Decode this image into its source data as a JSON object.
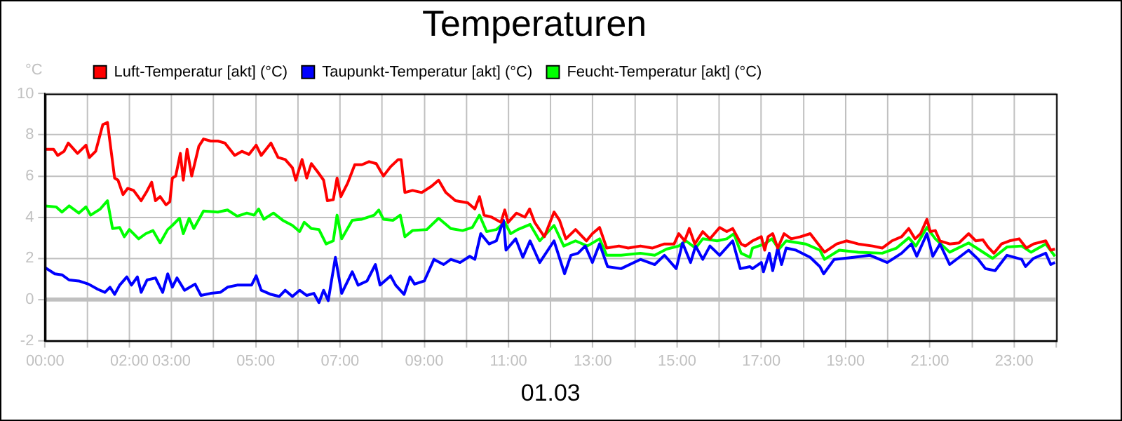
{
  "chart_data": {
    "type": "line",
    "title": "Temperaturen",
    "xlabel": "01.03",
    "ylabel": "°C",
    "legend": "top left",
    "grid": true,
    "marker": "none",
    "line_style": "solid",
    "xlim": [
      0,
      24
    ],
    "xticks": [
      {
        "value": 0,
        "label": "00:00"
      },
      {
        "value": 1,
        "label": null
      },
      {
        "value": 2,
        "label": "02:00"
      },
      {
        "value": 3,
        "label": "03:00"
      },
      {
        "value": 4,
        "label": null
      },
      {
        "value": 5,
        "label": "05:00"
      },
      {
        "value": 6,
        "label": null
      },
      {
        "value": 7,
        "label": "07:00"
      },
      {
        "value": 8,
        "label": null
      },
      {
        "value": 9,
        "label": "09:00"
      },
      {
        "value": 10,
        "label": null
      },
      {
        "value": 11,
        "label": "11:00"
      },
      {
        "value": 12,
        "label": null
      },
      {
        "value": 13,
        "label": "13:00"
      },
      {
        "value": 14,
        "label": null
      },
      {
        "value": 15,
        "label": "15:00"
      },
      {
        "value": 16,
        "label": null
      },
      {
        "value": 17,
        "label": "17:00"
      },
      {
        "value": 18,
        "label": null
      },
      {
        "value": 19,
        "label": "19:00"
      },
      {
        "value": 20,
        "label": null
      },
      {
        "value": 21,
        "label": "21:00"
      },
      {
        "value": 22,
        "label": null
      },
      {
        "value": 23,
        "label": "23:00"
      },
      {
        "value": 24,
        "label": null
      }
    ],
    "ylim": [
      -2,
      10
    ],
    "yticks": [
      -2,
      0,
      2,
      4,
      6,
      8,
      10
    ],
    "ref_lines": [
      {
        "axis": "y",
        "value": 0,
        "color": "#c0c0c0"
      }
    ],
    "series": [
      {
        "name": "Luft-Temperatur [akt] (°C)",
        "color": "#ff0000",
        "x": [
          0,
          0.2,
          0.3,
          0.45,
          0.55,
          0.77,
          0.97,
          1.05,
          1.2,
          1.37,
          1.48,
          1.6,
          1.65,
          1.73,
          1.85,
          1.96,
          2.1,
          2.28,
          2.4,
          2.53,
          2.62,
          2.73,
          2.87,
          2.96,
          3.02,
          3.1,
          3.21,
          3.28,
          3.37,
          3.48,
          3.65,
          3.76,
          3.93,
          4.1,
          4.27,
          4.5,
          4.67,
          4.84,
          5.01,
          5.13,
          5.36,
          5.53,
          5.7,
          5.87,
          5.95,
          6.1,
          6.21,
          6.32,
          6.47,
          6.61,
          6.7,
          6.84,
          6.93,
          7.02,
          7.18,
          7.35,
          7.52,
          7.69,
          7.86,
          8.03,
          8.2,
          8.38,
          8.45,
          8.54,
          8.72,
          8.94,
          9.17,
          9.34,
          9.51,
          9.74,
          10.03,
          10.2,
          10.31,
          10.42,
          10.6,
          10.82,
          10.91,
          10.99,
          11.19,
          11.39,
          11.5,
          11.62,
          11.85,
          12.08,
          12.21,
          12.36,
          12.59,
          12.85,
          12.99,
          13.16,
          13.33,
          13.62,
          13.84,
          14.13,
          14.41,
          14.7,
          14.93,
          15.04,
          15.18,
          15.29,
          15.42,
          15.61,
          15.78,
          16.01,
          16.18,
          16.32,
          16.52,
          16.62,
          16.79,
          17.0,
          17.08,
          17.16,
          17.27,
          17.39,
          17.54,
          17.71,
          17.93,
          18.16,
          18.33,
          18.5,
          18.79,
          19.02,
          19.3,
          19.64,
          19.87,
          20.1,
          20.33,
          20.5,
          20.65,
          20.78,
          20.93,
          21.01,
          21.13,
          21.24,
          21.47,
          21.69,
          21.92,
          22.09,
          22.26,
          22.38,
          22.52,
          22.7,
          22.89,
          23.12,
          23.29,
          23.46,
          23.75,
          23.87,
          23.97
        ],
        "values": [
          7.3,
          7.3,
          7.0,
          7.2,
          7.6,
          7.1,
          7.5,
          6.9,
          7.2,
          8.5,
          8.6,
          6.7,
          5.9,
          5.8,
          5.1,
          5.4,
          5.3,
          4.8,
          5.2,
          5.7,
          4.8,
          5.0,
          4.6,
          4.75,
          5.9,
          6.0,
          7.1,
          5.8,
          7.3,
          6.0,
          7.45,
          7.8,
          7.7,
          7.7,
          7.6,
          7.0,
          7.2,
          7.05,
          7.5,
          7.0,
          7.6,
          6.9,
          6.8,
          6.4,
          5.8,
          6.8,
          5.9,
          6.6,
          6.2,
          5.8,
          4.8,
          4.85,
          5.9,
          5.0,
          5.65,
          6.55,
          6.55,
          6.7,
          6.6,
          6.0,
          6.45,
          6.8,
          6.8,
          5.2,
          5.3,
          5.2,
          5.5,
          5.8,
          5.2,
          4.8,
          4.7,
          4.4,
          5.0,
          4.1,
          4.0,
          3.75,
          4.35,
          3.75,
          4.2,
          4.0,
          4.4,
          3.75,
          3.05,
          4.25,
          3.85,
          2.95,
          3.4,
          2.85,
          3.2,
          3.5,
          2.5,
          2.6,
          2.5,
          2.6,
          2.5,
          2.7,
          2.7,
          3.2,
          2.85,
          3.45,
          2.7,
          3.3,
          2.95,
          3.5,
          3.3,
          3.45,
          2.7,
          2.6,
          2.85,
          3.05,
          2.4,
          3.05,
          3.2,
          2.5,
          3.2,
          2.95,
          3.05,
          3.2,
          2.75,
          2.3,
          2.7,
          2.85,
          2.7,
          2.6,
          2.5,
          2.85,
          3.05,
          3.45,
          2.95,
          3.2,
          3.9,
          3.3,
          3.35,
          2.85,
          2.7,
          2.75,
          3.2,
          2.85,
          2.9,
          2.55,
          2.25,
          2.7,
          2.85,
          2.95,
          2.5,
          2.7,
          2.85,
          2.4,
          2.45
        ]
      },
      {
        "name": "Taupunkt-Temperatur [akt] (°C)",
        "color": "#0000ff",
        "x": [
          0,
          0.23,
          0.4,
          0.57,
          0.8,
          1.03,
          1.25,
          1.42,
          1.54,
          1.65,
          1.77,
          1.94,
          2.05,
          2.19,
          2.28,
          2.42,
          2.62,
          2.79,
          2.91,
          3.02,
          3.13,
          3.31,
          3.56,
          3.7,
          3.93,
          4.16,
          4.33,
          4.56,
          4.9,
          5.01,
          5.13,
          5.36,
          5.56,
          5.7,
          5.87,
          6.04,
          6.21,
          6.38,
          6.5,
          6.61,
          6.72,
          6.89,
          7.04,
          7.29,
          7.43,
          7.64,
          7.84,
          7.95,
          8.2,
          8.32,
          8.52,
          8.66,
          8.77,
          9.0,
          9.23,
          9.46,
          9.63,
          9.85,
          10.08,
          10.2,
          10.34,
          10.54,
          10.71,
          10.88,
          10.94,
          11.17,
          11.34,
          11.51,
          11.74,
          12.08,
          12.33,
          12.48,
          12.65,
          12.82,
          12.99,
          13.16,
          13.35,
          13.67,
          14.13,
          14.47,
          14.7,
          14.98,
          15.13,
          15.32,
          15.44,
          15.61,
          15.78,
          16.01,
          16.32,
          16.5,
          16.73,
          16.79,
          17.0,
          17.05,
          17.19,
          17.27,
          17.39,
          17.48,
          17.59,
          17.82,
          18.16,
          18.39,
          18.48,
          18.73,
          19.19,
          19.58,
          19.99,
          20.33,
          20.56,
          20.69,
          20.93,
          21.07,
          21.24,
          21.47,
          21.92,
          22.15,
          22.32,
          22.55,
          22.83,
          23.18,
          23.27,
          23.46,
          23.75,
          23.87,
          23.97
        ],
        "values": [
          1.55,
          1.25,
          1.2,
          0.95,
          0.9,
          0.75,
          0.5,
          0.35,
          0.6,
          0.25,
          0.7,
          1.1,
          0.7,
          1.1,
          0.35,
          0.95,
          1.05,
          0.35,
          1.25,
          0.6,
          1.05,
          0.45,
          0.75,
          0.2,
          0.3,
          0.35,
          0.6,
          0.7,
          0.7,
          1.15,
          0.45,
          0.25,
          0.15,
          0.45,
          0.15,
          0.45,
          0.2,
          0.3,
          -0.15,
          0.45,
          -0.05,
          2.05,
          0.3,
          1.35,
          0.7,
          0.9,
          1.7,
          0.7,
          1.15,
          0.7,
          0.25,
          1.1,
          0.75,
          0.9,
          1.95,
          1.7,
          1.95,
          1.8,
          2.1,
          1.95,
          3.2,
          2.7,
          2.85,
          3.85,
          2.4,
          2.95,
          2.05,
          2.85,
          1.8,
          2.85,
          1.25,
          2.15,
          2.25,
          2.6,
          1.8,
          2.7,
          1.6,
          1.5,
          1.95,
          1.7,
          2.15,
          1.5,
          2.75,
          1.8,
          2.6,
          1.95,
          2.6,
          2.15,
          2.85,
          1.5,
          1.6,
          1.5,
          1.8,
          1.35,
          2.25,
          1.4,
          2.5,
          1.7,
          2.5,
          2.4,
          2.05,
          1.6,
          1.25,
          1.95,
          2.05,
          2.15,
          1.8,
          2.25,
          2.7,
          2.1,
          3.2,
          2.1,
          2.7,
          1.7,
          2.4,
          1.95,
          1.5,
          1.4,
          2.15,
          1.95,
          1.6,
          2.0,
          2.25,
          1.7,
          1.8
        ]
      },
      {
        "name": "Feucht-Temperatur [akt] (°C)",
        "color": "#00ff00",
        "x": [
          0,
          0.26,
          0.4,
          0.57,
          0.8,
          0.97,
          1.08,
          1.31,
          1.48,
          1.6,
          1.77,
          1.88,
          2.0,
          2.22,
          2.39,
          2.56,
          2.73,
          2.91,
          3.02,
          3.19,
          3.28,
          3.42,
          3.53,
          3.76,
          4.1,
          4.33,
          4.56,
          4.79,
          4.96,
          5.07,
          5.19,
          5.42,
          5.64,
          5.87,
          6.04,
          6.15,
          6.32,
          6.5,
          6.67,
          6.84,
          6.93,
          7.04,
          7.29,
          7.52,
          7.81,
          7.92,
          8.03,
          8.26,
          8.43,
          8.54,
          8.72,
          9.06,
          9.34,
          9.63,
          9.91,
          10.14,
          10.31,
          10.48,
          10.71,
          10.91,
          11.05,
          11.22,
          11.51,
          11.74,
          12.08,
          12.31,
          12.59,
          12.87,
          13.16,
          13.33,
          13.67,
          14.13,
          14.47,
          14.75,
          15.04,
          15.21,
          15.44,
          15.61,
          15.95,
          16.18,
          16.35,
          16.52,
          16.73,
          16.79,
          17.08,
          17.25,
          17.42,
          17.59,
          18.05,
          18.39,
          18.5,
          18.85,
          19.3,
          19.87,
          20.21,
          20.5,
          20.67,
          20.93,
          21.13,
          21.47,
          21.92,
          22.15,
          22.49,
          22.83,
          23.18,
          23.4,
          23.75,
          23.97
        ],
        "values": [
          4.55,
          4.5,
          4.25,
          4.55,
          4.2,
          4.5,
          4.1,
          4.4,
          4.8,
          3.45,
          3.5,
          3.05,
          3.4,
          2.95,
          3.2,
          3.35,
          2.75,
          3.4,
          3.6,
          3.95,
          3.2,
          3.95,
          3.45,
          4.3,
          4.25,
          4.35,
          4.05,
          4.2,
          4.1,
          4.4,
          3.9,
          4.2,
          3.85,
          3.6,
          3.3,
          3.75,
          3.45,
          3.4,
          2.7,
          2.85,
          4.1,
          2.95,
          3.85,
          3.9,
          4.1,
          4.35,
          3.9,
          3.85,
          4.1,
          3.05,
          3.35,
          3.4,
          3.95,
          3.45,
          3.35,
          3.5,
          4.1,
          3.3,
          3.4,
          3.75,
          3.2,
          3.4,
          3.65,
          2.85,
          3.6,
          2.6,
          2.85,
          2.6,
          2.95,
          2.15,
          2.15,
          2.25,
          2.15,
          2.45,
          2.6,
          2.85,
          2.5,
          2.95,
          2.85,
          2.95,
          3.2,
          2.25,
          2.05,
          2.5,
          2.7,
          2.95,
          2.45,
          2.85,
          2.7,
          2.4,
          1.95,
          2.4,
          2.3,
          2.25,
          2.5,
          3.0,
          2.6,
          3.5,
          2.95,
          2.3,
          2.75,
          2.45,
          2.0,
          2.55,
          2.6,
          2.3,
          2.7,
          2.1
        ]
      }
    ]
  }
}
